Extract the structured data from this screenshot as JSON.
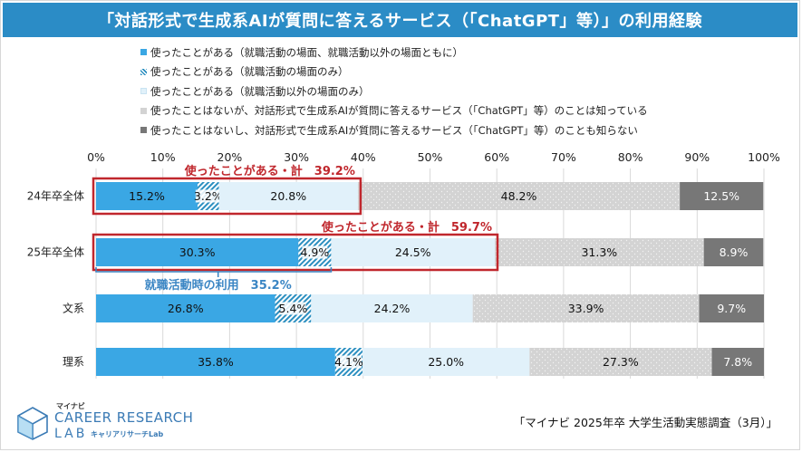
{
  "title": "「対話形式で生成系AIが質問に答えるサービス（「ChatGPT」等）」の利用経験",
  "legend": [
    "使ったことがある（就職活動の場面、就職活動以外の場面ともに）",
    "使ったことがある（就職活動の場面のみ）",
    "使ったことがある（就職活動以外の場面のみ）",
    "使ったことはないが、対話形式で生成系AIが質問に答えるサービス（「ChatGPT」等）のことは知っている",
    "使ったことはないし、対話形式で生成系AIが質問に答えるサービス（「ChatGPT」等）のことも知らない"
  ],
  "colors": {
    "title_bg": "#2b8cc6",
    "s0": "#3aa7e4",
    "s1": "#2c8fc0",
    "s2": "#e1f1fa",
    "s3": "#d3d3d3",
    "s4": "#777777",
    "highlight": "#c0272d",
    "bracket": "#3b86c4"
  },
  "chart_data": {
    "type": "bar",
    "orientation": "horizontal",
    "stacked": true,
    "categories": [
      "24年卒全体",
      "25年卒全体",
      "文系",
      "理系"
    ],
    "series": [
      {
        "name": "使ったことがある（就職活動の場面、就職活動以外の場面ともに）",
        "values": [
          15.2,
          30.3,
          26.8,
          35.8
        ]
      },
      {
        "name": "使ったことがある（就職活動の場面のみ）",
        "values": [
          3.2,
          4.9,
          5.4,
          4.1
        ]
      },
      {
        "name": "使ったことがある（就職活動以外の場面のみ）",
        "values": [
          20.8,
          24.5,
          24.2,
          25.0
        ]
      },
      {
        "name": "使ったことはないが、対話形式で生成系AIが質問に答えるサービス（「ChatGPT」等）のことは知っている",
        "values": [
          48.2,
          31.3,
          33.9,
          27.3
        ]
      },
      {
        "name": "使ったことはないし、対話形式で生成系AIが質問に答えるサービス（「ChatGPT」等）のことも知らない",
        "values": [
          12.5,
          8.9,
          9.7,
          7.8
        ]
      }
    ],
    "xlim": [
      0,
      100
    ],
    "x_ticks": [
      "0%",
      "10%",
      "20%",
      "30%",
      "40%",
      "50%",
      "60%",
      "70%",
      "80%",
      "90%",
      "100%"
    ],
    "grid": true,
    "annotations": [
      {
        "category": "24年卒全体",
        "text": "使ったことがある・計　39.2%",
        "value": 39.2,
        "style": "red-box"
      },
      {
        "category": "25年卒全体",
        "text": "使ったことがある・計　59.7%",
        "value": 59.7,
        "style": "red-box"
      },
      {
        "category": "25年卒全体",
        "text": "就職活動時の利用　35.2%",
        "value": 35.2,
        "style": "blue-bracket"
      }
    ]
  },
  "source": "「マイナビ 2025年卒 大学生活動実態調査（3月）」",
  "logo": {
    "small": "マイナビ",
    "main": "CAREER RESEARCH",
    "lab": "LAB",
    "sub": "キャリアリサーチLab"
  }
}
